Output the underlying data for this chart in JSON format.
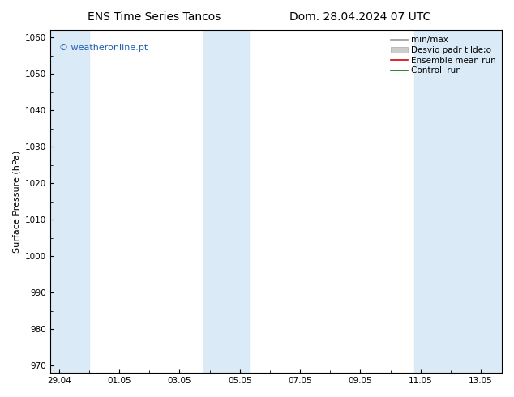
{
  "title_left": "ENS Time Series Tancos",
  "title_right": "Dom. 28.04.2024 07 UTC",
  "ylabel": "Surface Pressure (hPa)",
  "ylim": [
    968,
    1062
  ],
  "yticks": [
    970,
    980,
    990,
    1000,
    1010,
    1020,
    1030,
    1040,
    1050,
    1060
  ],
  "xtick_labels": [
    "29.04",
    "01.05",
    "03.05",
    "05.05",
    "07.05",
    "09.05",
    "11.05",
    "13.05"
  ],
  "xtick_positions": [
    0,
    2,
    4,
    6,
    8,
    10,
    12,
    14
  ],
  "xlim": [
    -0.3,
    14.7
  ],
  "shaded_bands": [
    {
      "x_start": -0.3,
      "x_end": 1.0
    },
    {
      "x_start": 4.8,
      "x_end": 6.3
    },
    {
      "x_start": 11.8,
      "x_end": 14.7
    }
  ],
  "band_color": "#daeaf6",
  "background_color": "#ffffff",
  "watermark_text": "© weatheronline.pt",
  "watermark_color": "#1a5cb0",
  "legend_items": [
    {
      "label": "min/max",
      "color": "#999999",
      "lw": 1.2
    },
    {
      "label": "Desvio padr tilde;o",
      "color": "#cccccc",
      "lw": 6
    },
    {
      "label": "Ensemble mean run",
      "color": "#dd0000",
      "lw": 1.2
    },
    {
      "label": "Controll run",
      "color": "#007700",
      "lw": 1.2
    }
  ],
  "title_fontsize": 10,
  "ylabel_fontsize": 8,
  "tick_fontsize": 7.5,
  "watermark_fontsize": 8,
  "legend_fontsize": 7.5
}
